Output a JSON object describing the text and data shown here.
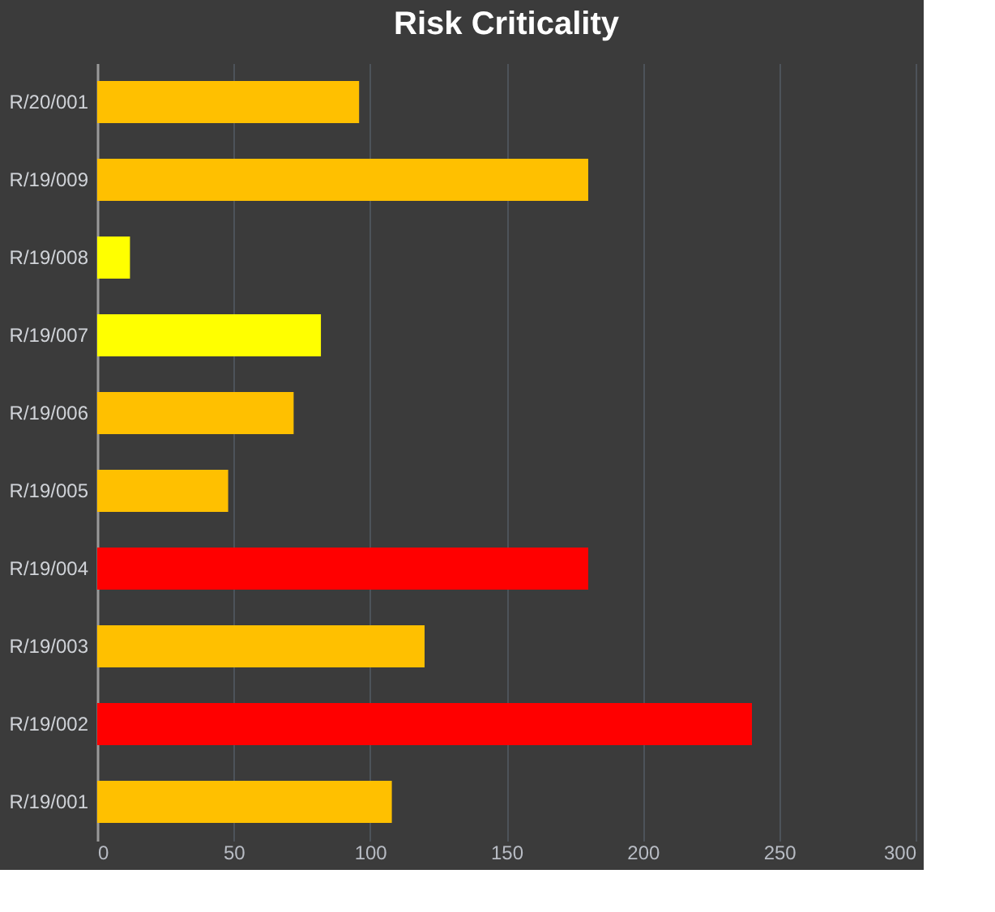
{
  "chart_data": {
    "type": "bar",
    "orientation": "horizontal",
    "title": "Risk Criticality",
    "categories": [
      "R/20/001",
      "R/19/009",
      "R/19/008",
      "R/19/007",
      "R/19/006",
      "R/19/005",
      "R/19/004",
      "R/19/003",
      "R/19/002",
      "R/19/001"
    ],
    "values": [
      96,
      180,
      12,
      82,
      72,
      48,
      180,
      120,
      240,
      108
    ],
    "colors": [
      "#ffc000",
      "#ffc000",
      "#ffff00",
      "#ffff00",
      "#ffc000",
      "#ffc000",
      "#ff0000",
      "#ffc000",
      "#ff0000",
      "#ffc000"
    ],
    "xlim": [
      0,
      300
    ],
    "xticks": [
      0,
      50,
      100,
      150,
      200,
      250,
      300
    ],
    "grid": "x"
  }
}
